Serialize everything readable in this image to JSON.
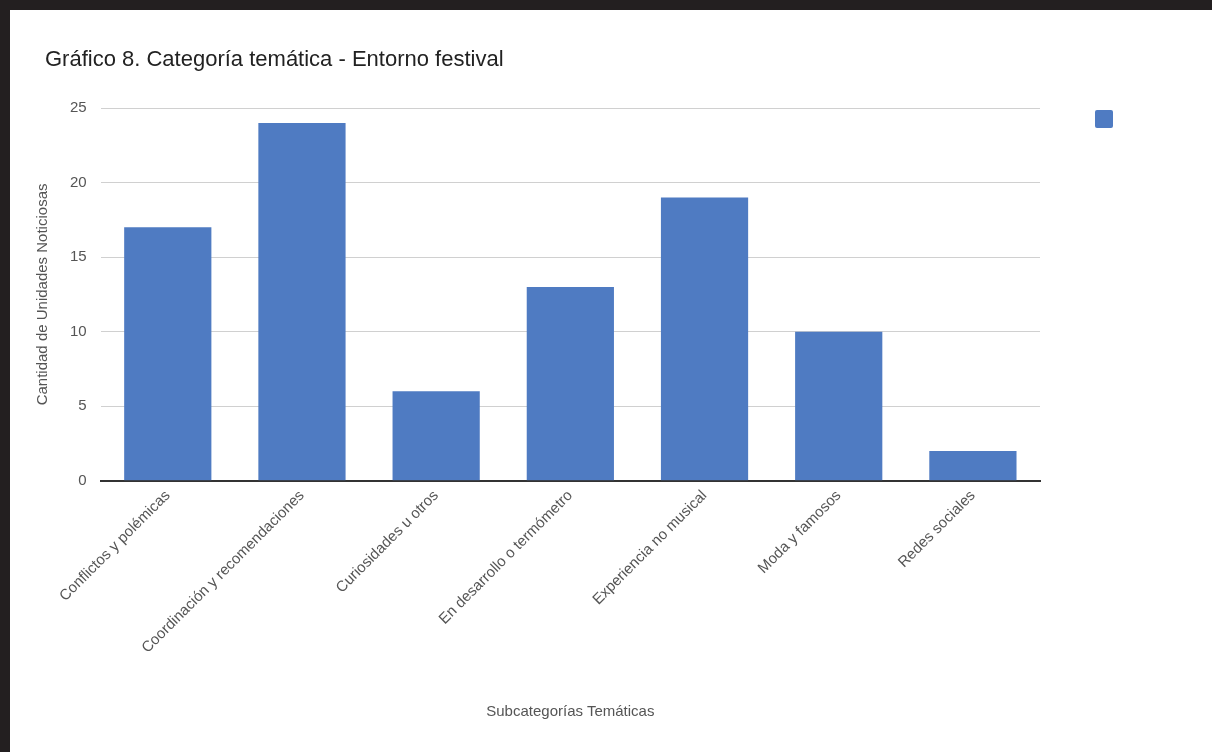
{
  "chart_data": {
    "type": "bar",
    "title": "Gráfico 8. Categoría temática - Entorno festival",
    "xlabel": "Subcategorías Temáticas",
    "ylabel": "Cantidad de Unidades Noticiosas",
    "categories": [
      "Conflictos y polémicas",
      "Coordinación y recomendaciones",
      "Curiosidades u otros",
      "En desarrollo o termómetro",
      "Experiencia no musical",
      "Moda y famosos",
      "Redes sociales"
    ],
    "series": [
      {
        "color": "#4f7bc2",
        "values": [
          17,
          24,
          6,
          13,
          19,
          10,
          2
        ]
      }
    ],
    "ylim": [
      0,
      25
    ],
    "yticks": [
      0,
      5,
      10,
      15,
      20,
      25
    ],
    "grid": "y"
  }
}
